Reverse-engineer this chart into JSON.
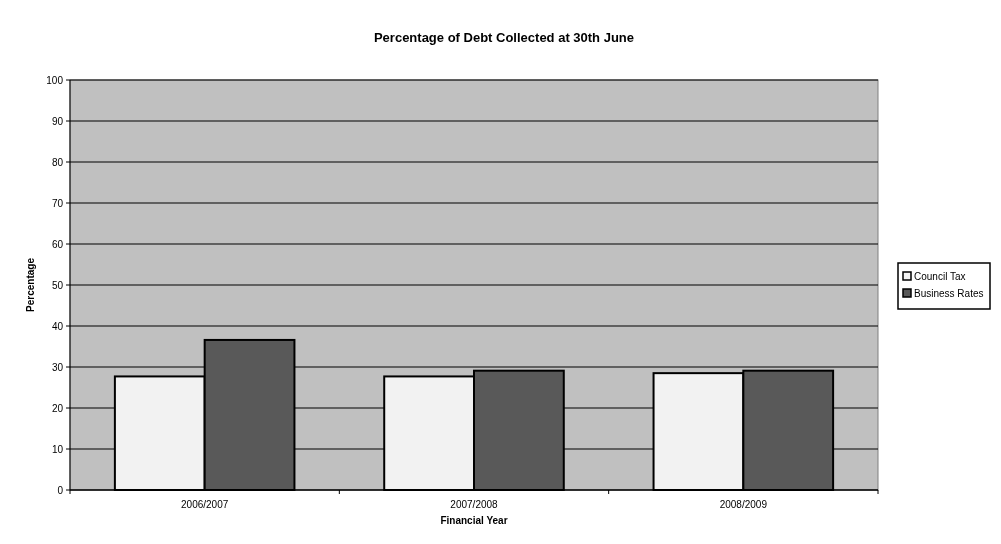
{
  "chart_data": {
    "type": "bar",
    "title": "Percentage of Debt Collected at 30th June",
    "xlabel": "Financial Year",
    "ylabel": "Percentage",
    "categories": [
      "2006/2007",
      "2007/2008",
      "2008/2009"
    ],
    "series": [
      {
        "name": "Council Tax",
        "color": "#f2f2f2",
        "values": [
          27.7,
          27.7,
          28.5
        ]
      },
      {
        "name": "Business Rates",
        "color": "#595959",
        "values": [
          36.6,
          29.1,
          29.1
        ]
      }
    ],
    "ylim": [
      0,
      100
    ],
    "yticks": [
      0,
      10,
      20,
      30,
      40,
      50,
      60,
      70,
      80,
      90,
      100
    ],
    "grid": "y",
    "legend": "right"
  }
}
